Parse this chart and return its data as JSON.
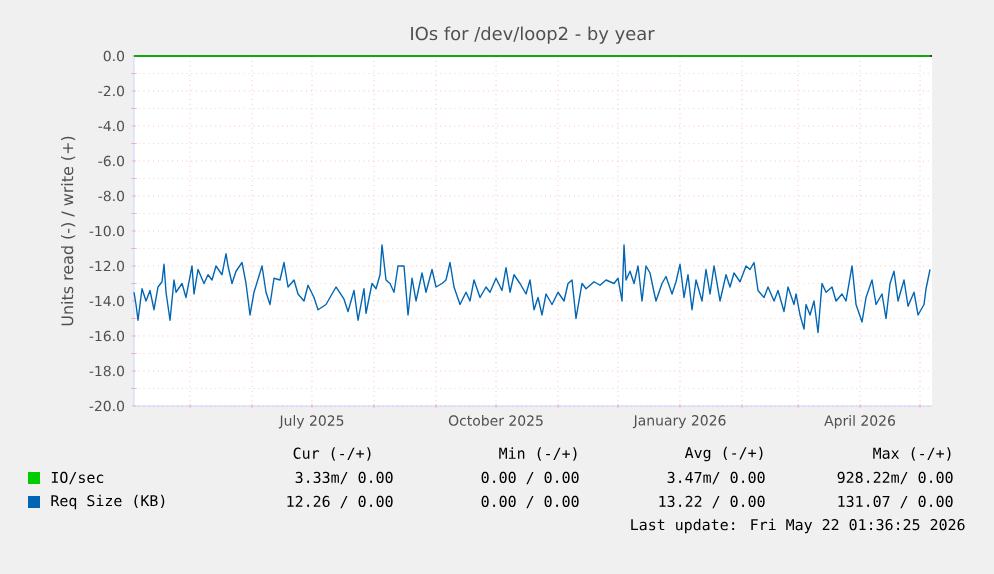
{
  "chart_data": {
    "type": "line",
    "title": "IOs for /dev/loop2 - by year",
    "ylabel": "Units read (-) / write (+)",
    "xlim": [
      "2025-04-03",
      "2026-05-07"
    ],
    "ylim": [
      -20,
      0
    ],
    "xticks": [
      {
        "value": "2025-05-01",
        "label": null
      },
      {
        "value": "2025-06-01",
        "label": null
      },
      {
        "value": "2025-07-01",
        "label": "July 2025"
      },
      {
        "value": "2025-08-01",
        "label": null
      },
      {
        "value": "2025-09-01",
        "label": null
      },
      {
        "value": "2025-10-01",
        "label": "October 2025"
      },
      {
        "value": "2025-11-01",
        "label": null
      },
      {
        "value": "2025-12-01",
        "label": null
      },
      {
        "value": "2026-01-01",
        "label": "January 2026"
      },
      {
        "value": "2026-02-01",
        "label": null
      },
      {
        "value": "2026-03-01",
        "label": null
      },
      {
        "value": "2026-04-01",
        "label": "April 2026"
      },
      {
        "value": "2026-05-01",
        "label": null
      }
    ],
    "yticks": [
      {
        "value": 0,
        "label": "0.0"
      },
      {
        "value": -2,
        "label": "-2.0"
      },
      {
        "value": -4,
        "label": "-4.0"
      },
      {
        "value": -6,
        "label": "-6.0"
      },
      {
        "value": -8,
        "label": "-8.0"
      },
      {
        "value": -10,
        "label": "-10.0"
      },
      {
        "value": -12,
        "label": "-12.0"
      },
      {
        "value": -14,
        "label": "-14.0"
      },
      {
        "value": -16,
        "label": "-16.0"
      },
      {
        "value": -18,
        "label": "-18.0"
      },
      {
        "value": -20,
        "label": "-20.0"
      }
    ],
    "grid": true,
    "legend": "bottom left",
    "marker": "none",
    "series": [
      {
        "name": "IO/sec",
        "color": "#00cc00",
        "x": [
          "2025-04-03",
          "2026-05-06"
        ],
        "values": [
          0,
          0
        ]
      },
      {
        "name": "Req Size (KB)",
        "color": "#0066b3",
        "x": [
          "2025-04-03",
          "2025-04-04",
          "2025-04-05",
          "2025-04-07",
          "2025-04-09",
          "2025-04-11",
          "2025-04-13",
          "2025-04-15",
          "2025-04-17",
          "2025-04-18",
          "2025-04-19",
          "2025-04-21",
          "2025-04-23",
          "2025-04-24",
          "2025-04-27",
          "2025-04-29",
          "2025-05-02",
          "2025-05-03",
          "2025-05-05",
          "2025-05-08",
          "2025-05-10",
          "2025-05-12",
          "2025-05-14",
          "2025-05-17",
          "2025-05-19",
          "2025-05-20",
          "2025-05-22",
          "2025-05-24",
          "2025-05-27",
          "2025-05-29",
          "2025-05-31",
          "2025-06-02",
          "2025-06-06",
          "2025-06-08",
          "2025-06-10",
          "2025-06-12",
          "2025-06-15",
          "2025-06-17",
          "2025-06-19",
          "2025-06-22",
          "2025-06-24",
          "2025-06-27",
          "2025-06-29",
          "2025-07-02",
          "2025-07-04",
          "2025-07-08",
          "2025-07-10",
          "2025-07-13",
          "2025-07-17",
          "2025-07-19",
          "2025-07-22",
          "2025-07-24",
          "2025-07-27",
          "2025-07-28",
          "2025-07-31",
          "2025-08-02",
          "2025-08-04",
          "2025-08-05",
          "2025-08-07",
          "2025-08-09",
          "2025-08-11",
          "2025-08-13",
          "2025-08-16",
          "2025-08-18",
          "2025-08-20",
          "2025-08-22",
          "2025-08-25",
          "2025-08-27",
          "2025-08-30",
          "2025-09-01",
          "2025-09-04",
          "2025-09-06",
          "2025-09-08",
          "2025-09-10",
          "2025-09-13",
          "2025-09-16",
          "2025-09-18",
          "2025-09-20",
          "2025-09-23",
          "2025-09-26",
          "2025-09-28",
          "2025-10-01",
          "2025-10-04",
          "2025-10-06",
          "2025-10-08",
          "2025-10-10",
          "2025-10-13",
          "2025-10-16",
          "2025-10-18",
          "2025-10-20",
          "2025-10-22",
          "2025-10-24",
          "2025-10-26",
          "2025-10-29",
          "2025-11-01",
          "2025-11-04",
          "2025-11-06",
          "2025-11-08",
          "2025-11-10",
          "2025-11-13",
          "2025-11-15",
          "2025-11-19",
          "2025-11-22",
          "2025-11-25",
          "2025-11-29",
          "2025-12-01",
          "2025-12-03",
          "2025-12-04",
          "2025-12-05",
          "2025-12-07",
          "2025-12-09",
          "2025-12-11",
          "2025-12-13",
          "2025-12-15",
          "2025-12-17",
          "2025-12-19",
          "2025-12-20",
          "2025-12-23",
          "2025-12-25",
          "2025-12-28",
          "2025-12-30",
          "2026-01-01",
          "2026-01-03",
          "2026-01-05",
          "2026-01-07",
          "2026-01-09",
          "2026-01-12",
          "2026-01-14",
          "2026-01-16",
          "2026-01-18",
          "2026-01-21",
          "2026-01-24",
          "2026-01-26",
          "2026-01-28",
          "2026-01-31",
          "2026-02-03",
          "2026-02-05",
          "2026-02-07",
          "2026-02-09",
          "2026-02-12",
          "2026-02-14",
          "2026-02-17",
          "2026-02-19",
          "2026-02-22",
          "2026-02-24",
          "2026-02-27",
          "2026-02-28",
          "2026-03-02",
          "2026-03-04",
          "2026-03-05",
          "2026-03-07",
          "2026-03-09",
          "2026-03-11",
          "2026-03-13",
          "2026-03-15",
          "2026-03-18",
          "2026-03-20",
          "2026-03-23",
          "2026-03-25",
          "2026-03-28",
          "2026-03-30",
          "2026-04-02",
          "2026-04-04",
          "2026-04-07",
          "2026-04-09",
          "2026-04-12",
          "2026-04-14",
          "2026-04-16",
          "2026-04-18",
          "2026-04-20",
          "2026-04-23",
          "2026-04-25",
          "2026-04-28",
          "2026-04-30",
          "2026-05-03",
          "2026-05-04",
          "2026-05-06"
        ],
        "values": [
          -13.5,
          -14.2,
          -15.1,
          -13.3,
          -14.0,
          -13.4,
          -14.5,
          -13.2,
          -12.9,
          -11.9,
          -13.5,
          -15.1,
          -12.8,
          -13.5,
          -13.0,
          -13.8,
          -12.0,
          -13.6,
          -12.2,
          -13.0,
          -12.5,
          -12.8,
          -12.0,
          -12.5,
          -11.3,
          -12.0,
          -13.0,
          -12.3,
          -11.8,
          -13.0,
          -14.8,
          -13.5,
          -12.0,
          -13.5,
          -14.2,
          -12.7,
          -12.8,
          -11.8,
          -13.2,
          -12.8,
          -13.6,
          -14.0,
          -13.1,
          -13.8,
          -14.5,
          -14.2,
          -13.8,
          -13.2,
          -13.9,
          -14.6,
          -13.4,
          -15.1,
          -13.3,
          -14.7,
          -13.0,
          -13.3,
          -12.5,
          -10.8,
          -12.8,
          -13.0,
          -13.5,
          -12.0,
          -12.0,
          -14.8,
          -12.7,
          -14.0,
          -12.4,
          -13.5,
          -12.2,
          -13.2,
          -13.0,
          -12.8,
          -11.8,
          -13.2,
          -14.2,
          -13.5,
          -14.0,
          -12.8,
          -13.8,
          -13.2,
          -13.5,
          -12.7,
          -13.4,
          -12.1,
          -13.5,
          -12.5,
          -13.0,
          -13.6,
          -12.8,
          -14.5,
          -13.8,
          -14.8,
          -13.6,
          -14.2,
          -13.5,
          -14.0,
          -13.0,
          -12.8,
          -15.0,
          -13.0,
          -13.3,
          -12.9,
          -13.1,
          -12.8,
          -13.0,
          -12.7,
          -14.0,
          -10.8,
          -12.8,
          -12.3,
          -13.0,
          -12.0,
          -14.0,
          -12.0,
          -12.4,
          -13.5,
          -14.0,
          -13.0,
          -12.6,
          -13.6,
          -12.9,
          -11.9,
          -13.8,
          -12.5,
          -14.5,
          -12.8,
          -14.0,
          -12.2,
          -13.6,
          -12.0,
          -14.0,
          -12.5,
          -13.2,
          -12.4,
          -12.9,
          -12.0,
          -12.2,
          -11.8,
          -13.4,
          -13.8,
          -13.2,
          -14.0,
          -13.4,
          -14.6,
          -13.2,
          -14.2,
          -13.6,
          -14.8,
          -15.6,
          -14.2,
          -14.8,
          -14.0,
          -15.8,
          -13.0,
          -13.5,
          -13.2,
          -14.0,
          -13.6,
          -14.0,
          -12.0,
          -14.2,
          -15.2,
          -13.8,
          -12.8,
          -14.2,
          -13.6,
          -15.0,
          -13.0,
          -12.3,
          -14.0,
          -12.8,
          -14.3,
          -13.5,
          -14.8,
          -14.2,
          -13.3,
          -12.2
        ]
      }
    ],
    "annotations": [
      "Cur (-/+)",
      "Min (-/+)",
      "Avg (-/+)",
      "Max (-/+)",
      "3.33m/ 0.00",
      "0.00 / 0.00",
      "3.47m/ 0.00",
      "928.22m/ 0.00",
      "12.26 / 0.00",
      "0.00 / 0.00",
      "13.22 / 0.00",
      "131.07 / 0.00",
      "Last update: Fri May 22 01:36:25 2026"
    ]
  }
}
